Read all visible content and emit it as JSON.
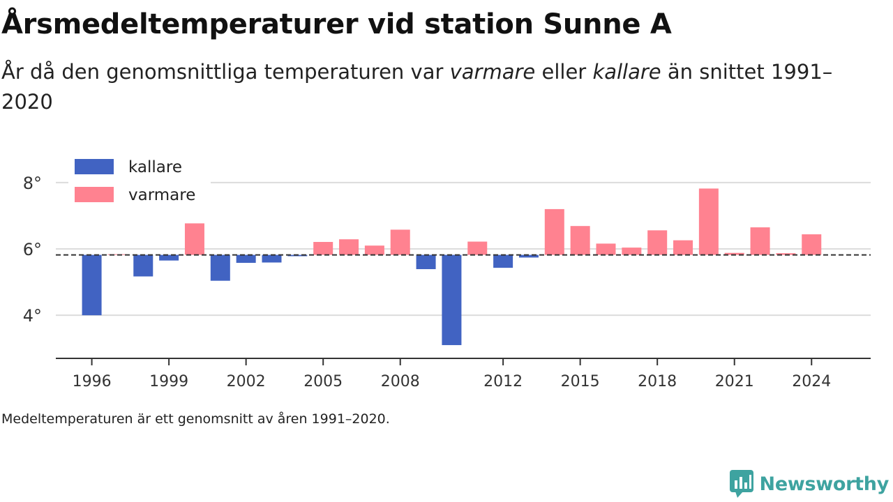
{
  "title": "Årsmedeltemperaturer vid station Sunne A",
  "subtitle": {
    "part1": "År då den genomsnittliga temperaturen var ",
    "warm_word": "varmare",
    "part2": " eller ",
    "cold_word": "kallare",
    "part3": " än snittet 1991–2020"
  },
  "footnote": "Medeltemperaturen är ett genomsnitt av åren 1991–2020.",
  "brand": {
    "name": "Newsworthy",
    "logo_icon": "newsworthy-chart-bubble-icon"
  },
  "colors": {
    "cold": "#4163c2",
    "warm": "#ff8290",
    "brand": "#3ea3a0"
  },
  "chart_data": {
    "type": "bar",
    "baseline": 5.82,
    "baseline_style": "dashed",
    "ylim": [
      2.7,
      9.3
    ],
    "yticks": [
      4,
      6,
      8
    ],
    "ytick_labels": [
      "4°",
      "6°",
      "8°"
    ],
    "xlim": [
      1994.6,
      2026.3
    ],
    "xticks": [
      1996,
      1999,
      2002,
      2005,
      2008,
      2012,
      2015,
      2018,
      2021,
      2024
    ],
    "grid": true,
    "legend_position": "top-left",
    "series": [
      {
        "name": "kallare",
        "color": "#4163c2"
      },
      {
        "name": "varmare",
        "color": "#ff8290"
      }
    ],
    "points": [
      {
        "year": 1996,
        "value": 4.0
      },
      {
        "year": 1997,
        "value": 5.84
      },
      {
        "year": 1998,
        "value": 5.17
      },
      {
        "year": 1999,
        "value": 5.65
      },
      {
        "year": 2000,
        "value": 6.77
      },
      {
        "year": 2001,
        "value": 5.04
      },
      {
        "year": 2002,
        "value": 5.58
      },
      {
        "year": 2003,
        "value": 5.59
      },
      {
        "year": 2004,
        "value": 5.78
      },
      {
        "year": 2005,
        "value": 6.21
      },
      {
        "year": 2006,
        "value": 6.29
      },
      {
        "year": 2007,
        "value": 6.1
      },
      {
        "year": 2008,
        "value": 6.58
      },
      {
        "year": 2009,
        "value": 5.39
      },
      {
        "year": 2010,
        "value": 3.1
      },
      {
        "year": 2011,
        "value": 6.22
      },
      {
        "year": 2012,
        "value": 5.43
      },
      {
        "year": 2013,
        "value": 5.74
      },
      {
        "year": 2014,
        "value": 7.2
      },
      {
        "year": 2015,
        "value": 6.69
      },
      {
        "year": 2016,
        "value": 6.16
      },
      {
        "year": 2017,
        "value": 6.04
      },
      {
        "year": 2018,
        "value": 6.56
      },
      {
        "year": 2019,
        "value": 6.26
      },
      {
        "year": 2020,
        "value": 7.82
      },
      {
        "year": 2021,
        "value": 5.88
      },
      {
        "year": 2022,
        "value": 6.65
      },
      {
        "year": 2023,
        "value": 5.87
      },
      {
        "year": 2024,
        "value": 6.44
      }
    ]
  }
}
